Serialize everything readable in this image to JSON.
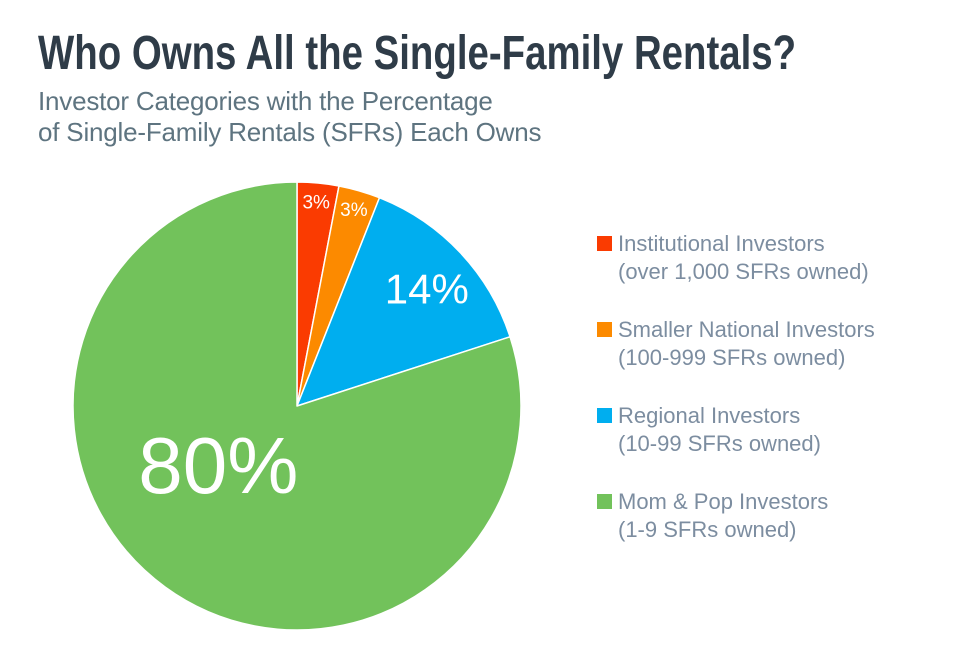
{
  "header": {
    "title": "Who Owns All the Single-Family Rentals?",
    "subtitle_lines": [
      "Investor Categories with the Percentage",
      "of Single-Family Rentals (SFRs) Each Owns"
    ]
  },
  "chart_data": {
    "type": "pie",
    "title": "Who Owns All the Single-Family Rentals?",
    "subtitle": "Investor Categories with the Percentage of Single-Family Rentals (SFRs) Each Owns",
    "units": "percent of single-family rentals owned",
    "start_angle_deg": 0,
    "direction": "clockwise",
    "legend_position": "right",
    "slices": [
      {
        "label": "Institutional Investors",
        "sublabel": "(over 1,000 SFRs owned)",
        "value": 3,
        "display": "3%",
        "color": "#fa3b01"
      },
      {
        "label": "Smaller National Investors",
        "sublabel": "(100-999 SFRs owned)",
        "value": 3,
        "display": "3%",
        "color": "#fc8a00"
      },
      {
        "label": "Regional Investors",
        "sublabel": "(10-99 SFRs owned)",
        "value": 14,
        "display": "14%",
        "color": "#00aeef"
      },
      {
        "label": "Mom & Pop Investors",
        "sublabel": "(1-9 SFRs owned)",
        "value": 80,
        "display": "80%",
        "color": "#72c25b"
      }
    ],
    "slice_label_color": "#ffffff",
    "label_layout": [
      {
        "angle_deg": 5.4,
        "r": 0.91,
        "font_px": 19
      },
      {
        "angle_deg": 16.2,
        "r": 0.91,
        "font_px": 19
      },
      {
        "angle_deg": 48,
        "r": 0.78,
        "font_px": 42
      },
      {
        "angle_deg": 233,
        "r": 0.44,
        "font_px": 80
      }
    ]
  },
  "colors": {
    "background": "#ffffff",
    "title_text": "#2f3c48",
    "subtitle_text": "#5e7480",
    "legend_text": "#7c8da0"
  }
}
